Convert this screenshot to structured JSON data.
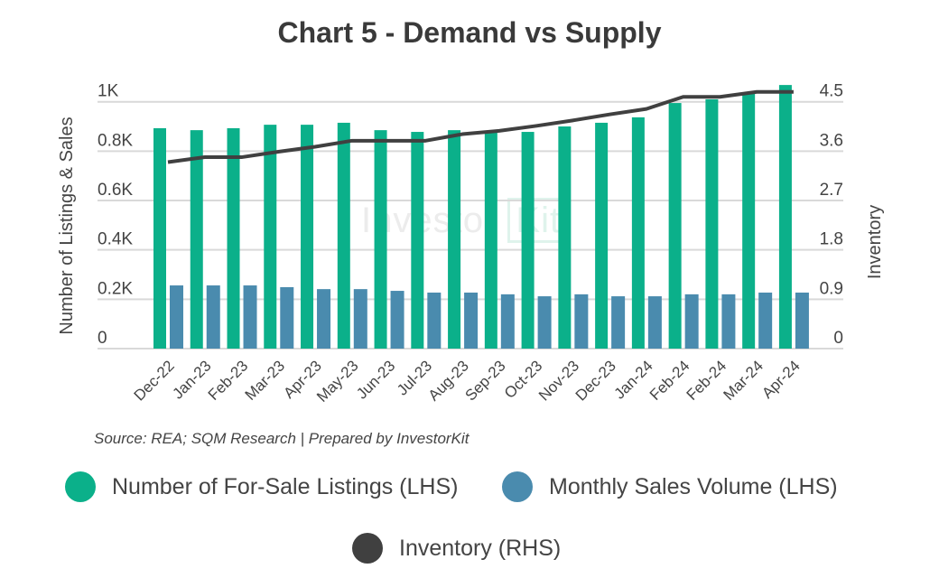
{
  "chart_data": {
    "type": "bar",
    "title": "Chart 5 - Demand vs Supply",
    "ylabel": "Number of Listings & Sales",
    "y2label": "Inventory",
    "ylim": [
      0,
      1000
    ],
    "y2lim": [
      0,
      4.5
    ],
    "yticks": [
      "0",
      "0.2K",
      "0.4K",
      "0.6K",
      "0.8K",
      "1K"
    ],
    "y2ticks": [
      "0",
      "0.9",
      "1.8",
      "2.7",
      "3.6",
      "4.5"
    ],
    "grid": true,
    "categories": [
      "Dec-22",
      "Jan-23",
      "Feb-23",
      "Mar-23",
      "Apr-23",
      "May-23",
      "Jun-23",
      "Jul-23",
      "Aug-23",
      "Sep-23",
      "Oct-23",
      "Nov-23",
      "Dec-23",
      "Jan-24",
      "Feb-24",
      "Feb-24",
      "Mar-24",
      "Apr-24"
    ],
    "series": [
      {
        "name": "Number of For-Sale Listings (LHS)",
        "type": "bar",
        "axis": "left",
        "color": "#0bb08a",
        "values": [
          893,
          885,
          893,
          907,
          907,
          915,
          885,
          878,
          885,
          878,
          878,
          900,
          915,
          937,
          995,
          1010,
          1035,
          1068
        ]
      },
      {
        "name": "Monthly Sales Volume (LHS)",
        "type": "bar",
        "axis": "left",
        "color": "#4a8bae",
        "values": [
          256,
          256,
          256,
          249,
          241,
          241,
          234,
          227,
          227,
          220,
          212,
          220,
          212,
          212,
          220,
          220,
          227,
          227
        ]
      },
      {
        "name": "Inventory (RHS)",
        "type": "line",
        "axis": "right",
        "color": "#404040",
        "values": [
          3.4,
          3.49,
          3.49,
          3.59,
          3.68,
          3.79,
          3.79,
          3.79,
          3.91,
          3.97,
          4.06,
          4.16,
          4.27,
          4.37,
          4.59,
          4.59,
          4.68,
          4.68
        ]
      }
    ],
    "legend_placement": "bottom",
    "source": "Source: REA; SQM Research | Prepared by InvestorKit",
    "watermark": "InvestorKit"
  }
}
